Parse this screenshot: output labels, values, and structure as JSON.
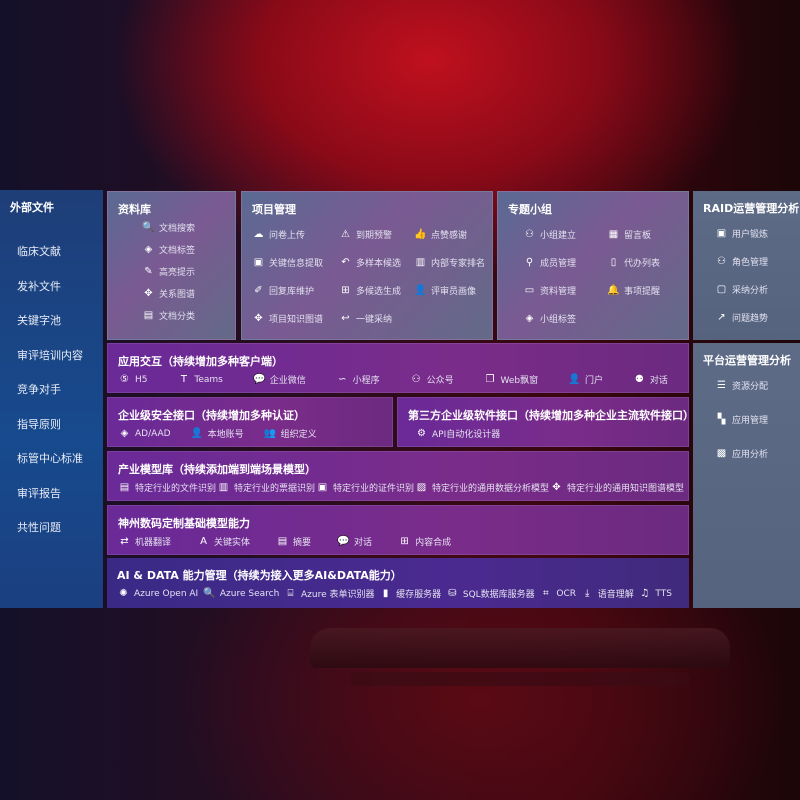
{
  "left": {
    "title": "外部文件",
    "items": [
      "临床文献",
      "发补文件",
      "关键字池",
      "审评培训内容",
      "竞争对手",
      "指导原则",
      "标管中心标准",
      "审评报告",
      "共性问题"
    ]
  },
  "library": {
    "title": "资料库",
    "items": [
      {
        "icon": "doc-search-icon",
        "g": "🔍",
        "label": "文档搜索"
      },
      {
        "icon": "tag-icon",
        "g": "◈",
        "label": "文档标签"
      },
      {
        "icon": "pen-icon",
        "g": "✎",
        "label": "高亮提示"
      },
      {
        "icon": "graph-icon",
        "g": "✥",
        "label": "关系图谱"
      },
      {
        "icon": "doc-category-icon",
        "g": "▤",
        "label": "文档分类"
      }
    ]
  },
  "project": {
    "title": "项目管理",
    "columns": [
      [
        {
          "icon": "cloud-upload-icon",
          "g": "☁",
          "label": "问卷上传"
        },
        {
          "icon": "info-icon",
          "g": "▣",
          "label": "关键信息提取"
        },
        {
          "icon": "edit-icon",
          "g": "✐",
          "label": "回复库维护"
        },
        {
          "icon": "graph-icon",
          "g": "✥",
          "label": "项目知识图谱"
        }
      ],
      [
        {
          "icon": "alarm-icon",
          "g": "⚠",
          "label": "到期预警"
        },
        {
          "icon": "reply-all-icon",
          "g": "↶",
          "label": "多样本候选"
        },
        {
          "icon": "puzzle-icon",
          "g": "⊞",
          "label": "多候选生成"
        },
        {
          "icon": "reply-icon",
          "g": "↩",
          "label": "一键采纳"
        }
      ],
      [
        {
          "icon": "thumbs-up-icon",
          "g": "👍",
          "label": "点赞感谢"
        },
        {
          "icon": "ranking-icon",
          "g": "▥",
          "label": "内部专家排名"
        },
        {
          "icon": "person-icon",
          "g": "👤",
          "label": "评审员画像"
        }
      ]
    ]
  },
  "group": {
    "title": "专题小组",
    "columns": [
      [
        {
          "icon": "users-icon",
          "g": "⚇",
          "label": "小组建立"
        },
        {
          "icon": "user-add-icon",
          "g": "⚲",
          "label": "成员管理"
        },
        {
          "icon": "folder-icon",
          "g": "▭",
          "label": "资料管理"
        },
        {
          "icon": "tag-icon",
          "g": "◈",
          "label": "小组标签"
        }
      ],
      [
        {
          "icon": "bbs-icon",
          "g": "▦",
          "label": "留言板"
        },
        {
          "icon": "clipboard-icon",
          "g": "▯",
          "label": "代办列表"
        },
        {
          "icon": "bell-icon",
          "g": "🔔",
          "label": "事项提醒"
        }
      ]
    ]
  },
  "raid": {
    "title": "RAID运营管理分析",
    "items": [
      {
        "icon": "id-card-icon",
        "g": "▣",
        "label": "用户锻炼"
      },
      {
        "icon": "users-icon",
        "g": "⚇",
        "label": "角色管理"
      },
      {
        "icon": "qa-icon",
        "g": "▢",
        "label": "采纳分析"
      },
      {
        "icon": "trend-icon",
        "g": "↗",
        "label": "问题趋势"
      }
    ]
  },
  "platform": {
    "title": "平台运营管理分析",
    "items": [
      {
        "icon": "checklist-icon",
        "g": "☰",
        "label": "资源分配"
      },
      {
        "icon": "apps-icon",
        "g": "▚",
        "label": "应用管理"
      },
      {
        "icon": "chart-icon",
        "g": "▩",
        "label": "应用分析"
      }
    ]
  },
  "interaction": {
    "title": "应用交互（持续增加多种客户端）",
    "items": [
      {
        "icon": "html5-icon",
        "g": "⑤",
        "label": "H5"
      },
      {
        "icon": "teams-icon",
        "g": "T",
        "label": "Teams"
      },
      {
        "icon": "wechat-work-icon",
        "g": "💬",
        "label": "企业微信"
      },
      {
        "icon": "mini-program-icon",
        "g": "∽",
        "label": "小程序"
      },
      {
        "icon": "official-account-icon",
        "g": "⚇",
        "label": "公众号"
      },
      {
        "icon": "window-icon",
        "g": "❐",
        "label": "Web飘窗"
      },
      {
        "icon": "portal-icon",
        "g": "👤",
        "label": "门户"
      },
      {
        "icon": "chat-icon",
        "g": "⚉",
        "label": "对话"
      }
    ]
  },
  "security": {
    "title": "企业级安全接口（持续增加多种认证）",
    "items": [
      {
        "icon": "ad-icon",
        "g": "◈",
        "label": "AD/AAD"
      },
      {
        "icon": "local-account-icon",
        "g": "👤",
        "label": "本地账号"
      },
      {
        "icon": "org-icon",
        "g": "👥",
        "label": "组织定义"
      }
    ]
  },
  "thirdparty": {
    "title": "第三方企业级软件接口（持续增加多种企业主流软件接口）",
    "items": [
      {
        "icon": "api-gear-icon",
        "g": "⚙",
        "label": "API自动化设计器"
      }
    ]
  },
  "industry": {
    "title": "产业模型库（持续添加端到端场景模型）",
    "items": [
      {
        "icon": "doc-icon",
        "g": "▤",
        "label": "特定行业的文件识别"
      },
      {
        "icon": "receipt-icon",
        "g": "▥",
        "label": "特定行业的票据识别"
      },
      {
        "icon": "id-card-icon",
        "g": "▣",
        "label": "特定行业的证件识别"
      },
      {
        "icon": "data-analysis-icon",
        "g": "▨",
        "label": "特定行业的通用数据分析模型"
      },
      {
        "icon": "graph-icon",
        "g": "✥",
        "label": "特定行业的通用知识图谱模型"
      }
    ]
  },
  "base_models": {
    "title": "神州数码定制基础模型能力",
    "items": [
      {
        "icon": "translate-icon",
        "g": "⇄",
        "label": "机器翻译"
      },
      {
        "icon": "entity-icon",
        "g": "A",
        "label": "关键实体"
      },
      {
        "icon": "summary-icon",
        "g": "▤",
        "label": "摘要"
      },
      {
        "icon": "chat-icon",
        "g": "💬",
        "label": "对话"
      },
      {
        "icon": "puzzle-icon",
        "g": "⊞",
        "label": "内容合成"
      }
    ]
  },
  "ai_data": {
    "title": "AI & DATA 能力管理（持续为接入更多AI&DATA能力）",
    "items": [
      {
        "icon": "openai-icon",
        "g": "✺",
        "label": "Azure Open AI"
      },
      {
        "icon": "search-doc-icon",
        "g": "🔍",
        "label": "Azure Search"
      },
      {
        "icon": "form-recognizer-icon",
        "g": "⌸",
        "label": "Azure 表单识别器"
      },
      {
        "icon": "cache-server-icon",
        "g": "▮",
        "label": "缓存服务器"
      },
      {
        "icon": "sql-icon",
        "g": "⛁",
        "label": "SQL数据库服务器"
      },
      {
        "icon": "ocr-icon",
        "g": "⌗",
        "label": "OCR"
      },
      {
        "icon": "speech-icon",
        "g": "⤓",
        "label": "语音理解"
      },
      {
        "icon": "tts-icon",
        "g": "♫",
        "label": "TTS"
      }
    ]
  }
}
